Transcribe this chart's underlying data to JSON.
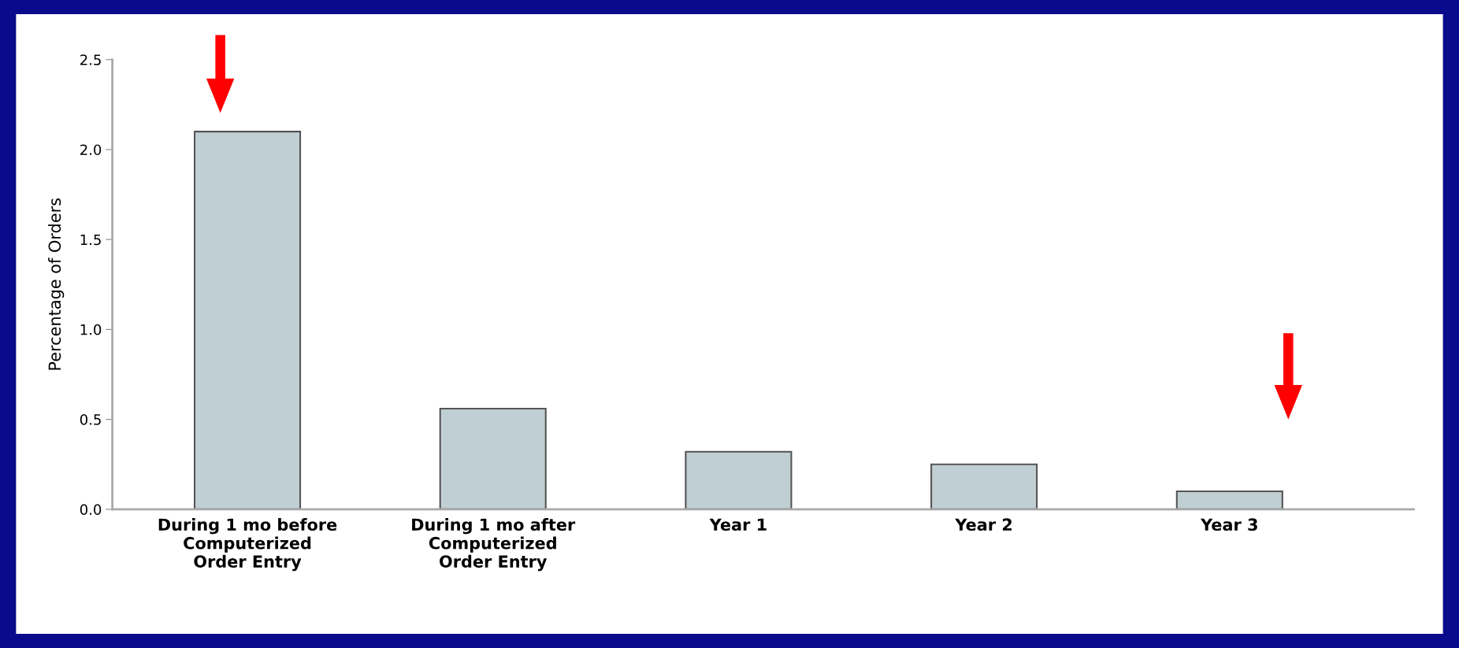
{
  "chart_data": {
    "type": "bar",
    "ylabel": "Percentage of Orders",
    "categories": [
      "During 1 mo before\nComputerized\nOrder Entry",
      "During 1 mo after\nComputerized\nOrder Entry",
      "Year 1",
      "Year 2",
      "Year 3"
    ],
    "values": [
      2.1,
      0.56,
      0.32,
      0.25,
      0.1
    ],
    "color": "#c0cfd3",
    "ylim": [
      0,
      2.5
    ],
    "yticks": [
      {
        "value": 0,
        "label": "0.0"
      },
      0.5,
      {
        "value": 1,
        "label": "1.0"
      },
      1.5,
      {
        "value": 2,
        "label": "2.0"
      },
      2.5
    ],
    "grid": false,
    "legend": false
  }
}
